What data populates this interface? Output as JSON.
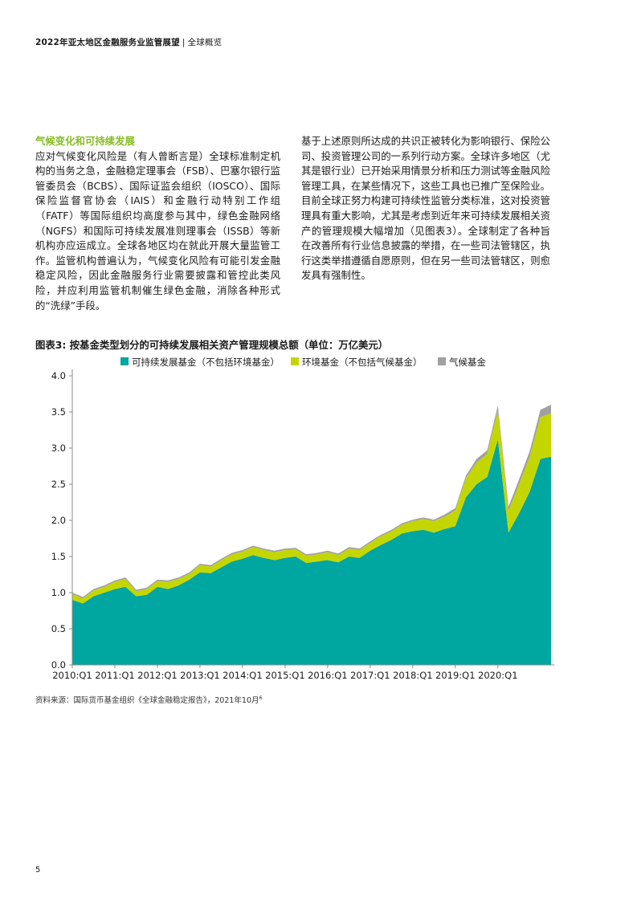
{
  "header": {
    "title": "2022年亚太地区金融服务业监管展望",
    "sep": "|",
    "section": "全球概览"
  },
  "left_column": {
    "heading": "气候变化和可持续发展",
    "text": "应对气候变化风险是（有人曾断言是）全球标准制定机构的当务之急，金融稳定理事会（FSB）、巴塞尔银行监管委员会（BCBS）、国际证监会组织（IOSCO）、国际保险监督官协会（IAIS）和金融行动特别工作组（FATF）等国际组织均高度参与其中，绿色金融网络（NGFS）和国际可持续发展准则理事会（ISSB）等新机构亦应运成立。全球各地区均在就此开展大量监管工作。监管机构普遍认为，气候变化风险有可能引发金融稳定风险，因此金融服务行业需要披露和管控此类风险，并应利用监管机制催生绿色金融，消除各种形式的“洗绿”手段。"
  },
  "right_column": {
    "text": "基于上述原则所达成的共识正被转化为影响银行、保险公司、投资管理公司的一系列行动方案。全球许多地区（尤其是银行业）已开始采用情景分析和压力测试等金融风险管理工具，在某些情况下，这些工具也已推广至保险业。目前全球正努力构建可持续性监管分类标准，这对投资管理具有重大影响，尤其是考虑到近年来可持续发展相关资产的管理规模大幅增加（见图表3）。全球制定了各种旨在改善所有行业信息披露的举措，在一些司法管辖区，执行这类举措遵循自愿原则，但在另一些司法管辖区，则愈发具有强制性。"
  },
  "figure": {
    "title": "图表3: 按基金类型划分的可持续发展相关资产管理规模总额（单位：万亿美元）"
  },
  "source": {
    "text": "资料来源：国际货币基金组织《全球金融稳定报告》，2021年10月",
    "note": "6"
  },
  "page_number": "5",
  "chart_data": {
    "type": "area",
    "stacked": true,
    "ylim": [
      0,
      4.0
    ],
    "yticks": [
      "0.0",
      "0.5",
      "1.0",
      "1.5",
      "2.0",
      "2.5",
      "3.0",
      "3.5",
      "4.0"
    ],
    "xtick_labels": [
      "2010:Q1",
      "2011:Q1",
      "2012:Q1",
      "2013:Q1",
      "2014:Q1",
      "2015:Q1",
      "2016:Q1",
      "2017:Q1",
      "2018:Q1",
      "2019:Q1",
      "2020:Q1"
    ],
    "grid": false,
    "legend_position": "top",
    "x": [
      "2010:Q1",
      "2010:Q2",
      "2010:Q3",
      "2010:Q4",
      "2011:Q1",
      "2011:Q2",
      "2011:Q3",
      "2011:Q4",
      "2012:Q1",
      "2012:Q2",
      "2012:Q3",
      "2012:Q4",
      "2013:Q1",
      "2013:Q2",
      "2013:Q3",
      "2013:Q4",
      "2014:Q1",
      "2014:Q2",
      "2014:Q3",
      "2014:Q4",
      "2015:Q1",
      "2015:Q2",
      "2015:Q3",
      "2015:Q4",
      "2016:Q1",
      "2016:Q2",
      "2016:Q3",
      "2016:Q4",
      "2017:Q1",
      "2017:Q2",
      "2017:Q3",
      "2017:Q4",
      "2018:Q1",
      "2018:Q2",
      "2018:Q3",
      "2018:Q4",
      "2019:Q1",
      "2019:Q2",
      "2019:Q3",
      "2019:Q4",
      "2020:Q1",
      "2020:Q2",
      "2020:Q3",
      "2020:Q4",
      "2021:Q1",
      "2021:Q2"
    ],
    "series": [
      {
        "name": "可持续发展基金（不包括环境基金）",
        "color": "#00a6a0",
        "values": [
          0.9,
          0.85,
          0.95,
          1.0,
          1.05,
          1.08,
          0.95,
          0.97,
          1.08,
          1.05,
          1.1,
          1.18,
          1.28,
          1.27,
          1.35,
          1.43,
          1.47,
          1.52,
          1.48,
          1.45,
          1.48,
          1.5,
          1.41,
          1.43,
          1.45,
          1.42,
          1.5,
          1.48,
          1.58,
          1.66,
          1.73,
          1.82,
          1.85,
          1.87,
          1.83,
          1.88,
          1.92,
          2.32,
          2.5,
          2.6,
          3.12,
          1.83,
          2.1,
          2.4,
          2.85,
          2.88
        ]
      },
      {
        "name": "环境基金（不包括气候基金）",
        "color": "#c4d600",
        "values": [
          0.08,
          0.07,
          0.08,
          0.08,
          0.1,
          0.11,
          0.07,
          0.08,
          0.08,
          0.1,
          0.09,
          0.08,
          0.1,
          0.09,
          0.1,
          0.1,
          0.1,
          0.11,
          0.11,
          0.11,
          0.11,
          0.1,
          0.1,
          0.1,
          0.11,
          0.1,
          0.11,
          0.11,
          0.11,
          0.12,
          0.12,
          0.12,
          0.14,
          0.15,
          0.16,
          0.17,
          0.22,
          0.26,
          0.3,
          0.32,
          0.4,
          0.3,
          0.4,
          0.48,
          0.58,
          0.6
        ]
      },
      {
        "name": "气候基金",
        "color": "#a0a0a0",
        "values": [
          0.02,
          0.02,
          0.02,
          0.02,
          0.02,
          0.02,
          0.02,
          0.02,
          0.02,
          0.02,
          0.02,
          0.02,
          0.02,
          0.02,
          0.02,
          0.02,
          0.02,
          0.02,
          0.02,
          0.02,
          0.02,
          0.02,
          0.02,
          0.02,
          0.02,
          0.02,
          0.02,
          0.02,
          0.02,
          0.02,
          0.02,
          0.02,
          0.02,
          0.02,
          0.02,
          0.03,
          0.03,
          0.04,
          0.05,
          0.05,
          0.07,
          0.06,
          0.07,
          0.08,
          0.1,
          0.12
        ]
      }
    ]
  }
}
